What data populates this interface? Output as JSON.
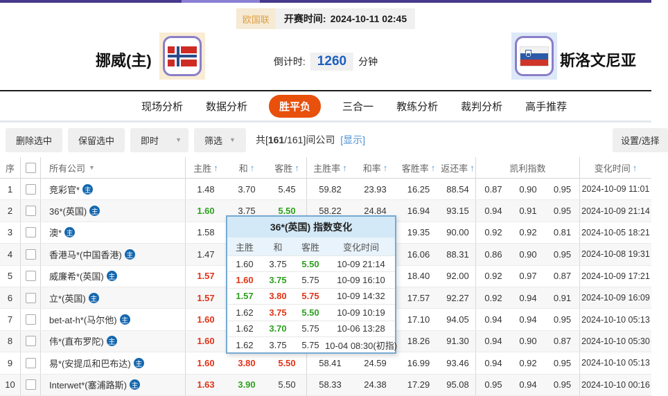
{
  "match": {
    "league": "欧国联",
    "kickoff_label": "开赛时间:",
    "kickoff_time": "2024-10-11 02:45",
    "home_name": "挪威(主)",
    "away_name": "斯洛文尼亚",
    "countdown_label": "倒计时:",
    "countdown_value": "1260",
    "countdown_unit": "分钟"
  },
  "nav": {
    "tabs": [
      "现场分析",
      "数据分析",
      "胜平负",
      "三合一",
      "教练分析",
      "裁判分析",
      "高手推荐"
    ],
    "active_index": 2
  },
  "toolbar": {
    "delete_btn": "删除选中",
    "keep_btn": "保留选中",
    "instant_dropdown": "即时",
    "filter_dropdown": "筛选",
    "count": {
      "prefix": "共[",
      "bold": "161",
      "suffix": "/161]间公司",
      "show_link": "[显示]"
    },
    "settings_btn": "设置/选择",
    "caret_icon": "▼"
  },
  "table": {
    "sort_arrow": "↑",
    "dropdown_caret": "▼",
    "headers": {
      "no": "序",
      "company": "所有公司",
      "home_win": "主胜",
      "draw": "和",
      "away_win": "客胜",
      "home_rate": "主胜率",
      "draw_rate": "和率",
      "away_rate": "客胜率",
      "return_rate": "返还率",
      "kelly": "凯利指数",
      "change_time": "变化时间"
    },
    "host_badge": "主",
    "rows": [
      {
        "no": "1",
        "company": "竞彩官*",
        "odds": [
          {
            "v": "1.48",
            "c": "k"
          },
          {
            "v": "3.70",
            "c": "k"
          },
          {
            "v": "5.45",
            "c": "k"
          }
        ],
        "rates": [
          "59.82",
          "23.93",
          "16.25",
          "88.54"
        ],
        "kelly": [
          "0.87",
          "0.90",
          "0.95"
        ],
        "time": "2024-10-09 11:01"
      },
      {
        "no": "2",
        "company": "36*(英国)",
        "odds": [
          {
            "v": "1.60",
            "c": "g"
          },
          {
            "v": "3.75",
            "c": "k"
          },
          {
            "v": "5.50",
            "c": "g"
          }
        ],
        "rates": [
          "58.22",
          "24.84",
          "16.94",
          "93.15"
        ],
        "kelly": [
          "0.94",
          "0.91",
          "0.95"
        ],
        "time": "2024-10-09 21:14"
      },
      {
        "no": "3",
        "company": "澳*",
        "odds": [
          {
            "v": "1.58",
            "c": "k"
          },
          {
            "v": "",
            "c": "k"
          },
          {
            "v": "",
            "c": "k"
          }
        ],
        "rates": [
          "",
          "",
          "19.35",
          "90.00"
        ],
        "kelly": [
          "0.92",
          "0.92",
          "0.81"
        ],
        "time": "2024-10-05 18:21"
      },
      {
        "no": "4",
        "company": "香港马*(中国香港)",
        "odds": [
          {
            "v": "1.47",
            "c": "k"
          },
          {
            "v": "",
            "c": "k"
          },
          {
            "v": "",
            "c": "k"
          }
        ],
        "rates": [
          "",
          "",
          "16.06",
          "88.31"
        ],
        "kelly": [
          "0.86",
          "0.90",
          "0.95"
        ],
        "time": "2024-10-08 19:31"
      },
      {
        "no": "5",
        "company": "威廉希*(英国)",
        "odds": [
          {
            "v": "1.57",
            "c": "r"
          },
          {
            "v": "",
            "c": "k"
          },
          {
            "v": "",
            "c": "k"
          }
        ],
        "rates": [
          "",
          "",
          "18.40",
          "92.00"
        ],
        "kelly": [
          "0.92",
          "0.97",
          "0.87"
        ],
        "time": "2024-10-09 17:21"
      },
      {
        "no": "6",
        "company": "立*(英国)",
        "odds": [
          {
            "v": "1.57",
            "c": "r"
          },
          {
            "v": "",
            "c": "k"
          },
          {
            "v": "",
            "c": "k"
          }
        ],
        "rates": [
          "",
          "",
          "17.57",
          "92.27"
        ],
        "kelly": [
          "0.92",
          "0.94",
          "0.91"
        ],
        "time": "2024-10-09 16:09"
      },
      {
        "no": "7",
        "company": "bet-at-h*(马尔他)",
        "odds": [
          {
            "v": "1.60",
            "c": "r"
          },
          {
            "v": "",
            "c": "k"
          },
          {
            "v": "",
            "c": "k"
          }
        ],
        "rates": [
          "",
          "",
          "17.10",
          "94.05"
        ],
        "kelly": [
          "0.94",
          "0.94",
          "0.95"
        ],
        "time": "2024-10-10 05:13"
      },
      {
        "no": "8",
        "company": "伟*(直布罗陀)",
        "odds": [
          {
            "v": "1.60",
            "c": "r"
          },
          {
            "v": "",
            "c": "k"
          },
          {
            "v": "",
            "c": "k"
          }
        ],
        "rates": [
          "",
          "",
          "18.26",
          "91.30"
        ],
        "kelly": [
          "0.94",
          "0.90",
          "0.87"
        ],
        "time": "2024-10-10 05:30"
      },
      {
        "no": "9",
        "company": "易*(安提瓜和巴布达)",
        "odds": [
          {
            "v": "1.60",
            "c": "r"
          },
          {
            "v": "3.80",
            "c": "r"
          },
          {
            "v": "5.50",
            "c": "r"
          }
        ],
        "rates": [
          "58.41",
          "24.59",
          "16.99",
          "93.46"
        ],
        "kelly": [
          "0.94",
          "0.92",
          "0.95"
        ],
        "time": "2024-10-10 05:13"
      },
      {
        "no": "10",
        "company": "Interwet*(塞浦路斯)",
        "odds": [
          {
            "v": "1.63",
            "c": "r"
          },
          {
            "v": "3.90",
            "c": "g"
          },
          {
            "v": "5.50",
            "c": "k"
          }
        ],
        "rates": [
          "58.33",
          "24.38",
          "17.29",
          "95.08"
        ],
        "kelly": [
          "0.95",
          "0.94",
          "0.95"
        ],
        "time": "2024-10-10 00:16"
      }
    ]
  },
  "popup": {
    "title": "36*(英国) 指数变化",
    "headers": [
      "主胜",
      "和",
      "客胜",
      "变化时间"
    ],
    "rows": [
      {
        "odds": [
          {
            "v": "1.60",
            "c": "k"
          },
          {
            "v": "3.75",
            "c": "k"
          },
          {
            "v": "5.50",
            "c": "g"
          }
        ],
        "time": "10-09 21:14"
      },
      {
        "odds": [
          {
            "v": "1.60",
            "c": "r"
          },
          {
            "v": "3.75",
            "c": "g"
          },
          {
            "v": "5.75",
            "c": "k"
          }
        ],
        "time": "10-09 16:10"
      },
      {
        "odds": [
          {
            "v": "1.57",
            "c": "g"
          },
          {
            "v": "3.80",
            "c": "r"
          },
          {
            "v": "5.75",
            "c": "r"
          }
        ],
        "time": "10-09 14:32"
      },
      {
        "odds": [
          {
            "v": "1.62",
            "c": "k"
          },
          {
            "v": "3.75",
            "c": "r"
          },
          {
            "v": "5.50",
            "c": "g"
          }
        ],
        "time": "10-09 10:19"
      },
      {
        "odds": [
          {
            "v": "1.62",
            "c": "k"
          },
          {
            "v": "3.70",
            "c": "g"
          },
          {
            "v": "5.75",
            "c": "k"
          }
        ],
        "time": "10-06 13:28"
      },
      {
        "odds": [
          {
            "v": "1.62",
            "c": "k"
          },
          {
            "v": "3.75",
            "c": "k"
          },
          {
            "v": "5.75",
            "c": "k"
          }
        ],
        "time": "10-04 08:30(初指)"
      }
    ]
  }
}
